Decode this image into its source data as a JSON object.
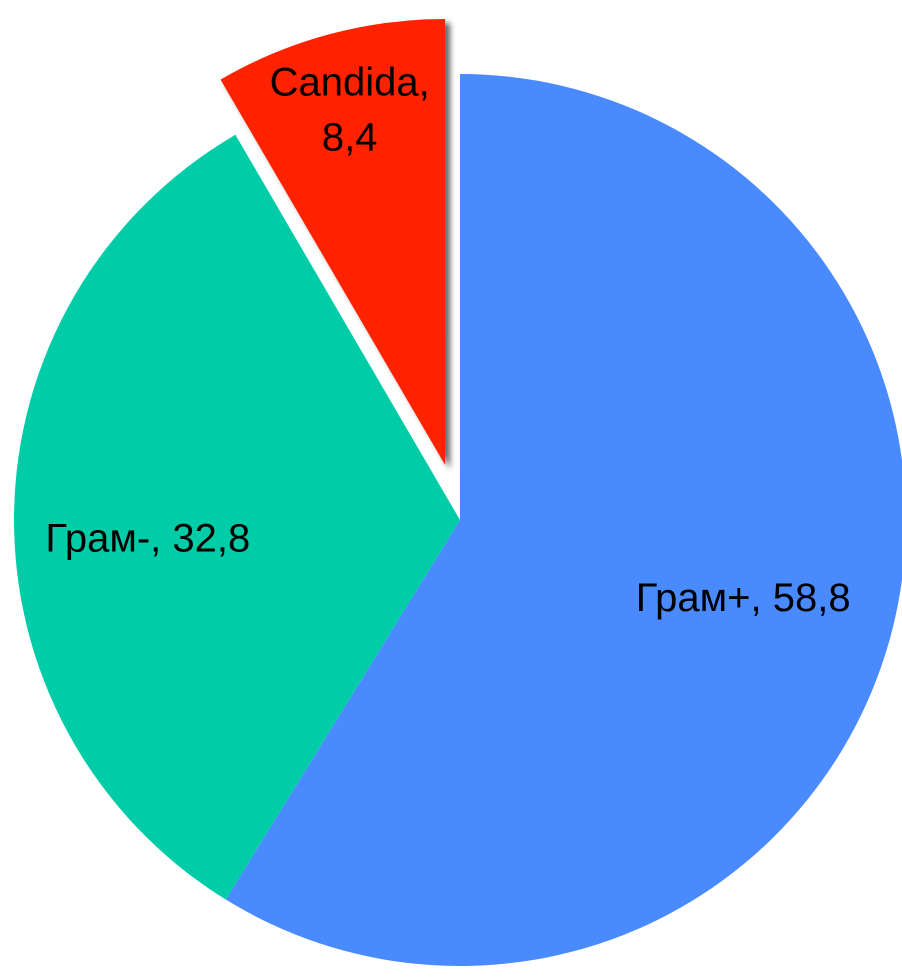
{
  "chart_data": {
    "type": "pie",
    "categories": [
      "Грам+",
      "Грам-",
      "Candida"
    ],
    "values": [
      58.8,
      32.8,
      8.4
    ],
    "value_labels": [
      "Грам+, 58,8",
      "Грам-, 32,8",
      "Candida, 8,4"
    ],
    "colors": [
      "#4a8aff",
      "#00cca8",
      "#ff2200"
    ],
    "explode": [
      false,
      false,
      true
    ]
  }
}
